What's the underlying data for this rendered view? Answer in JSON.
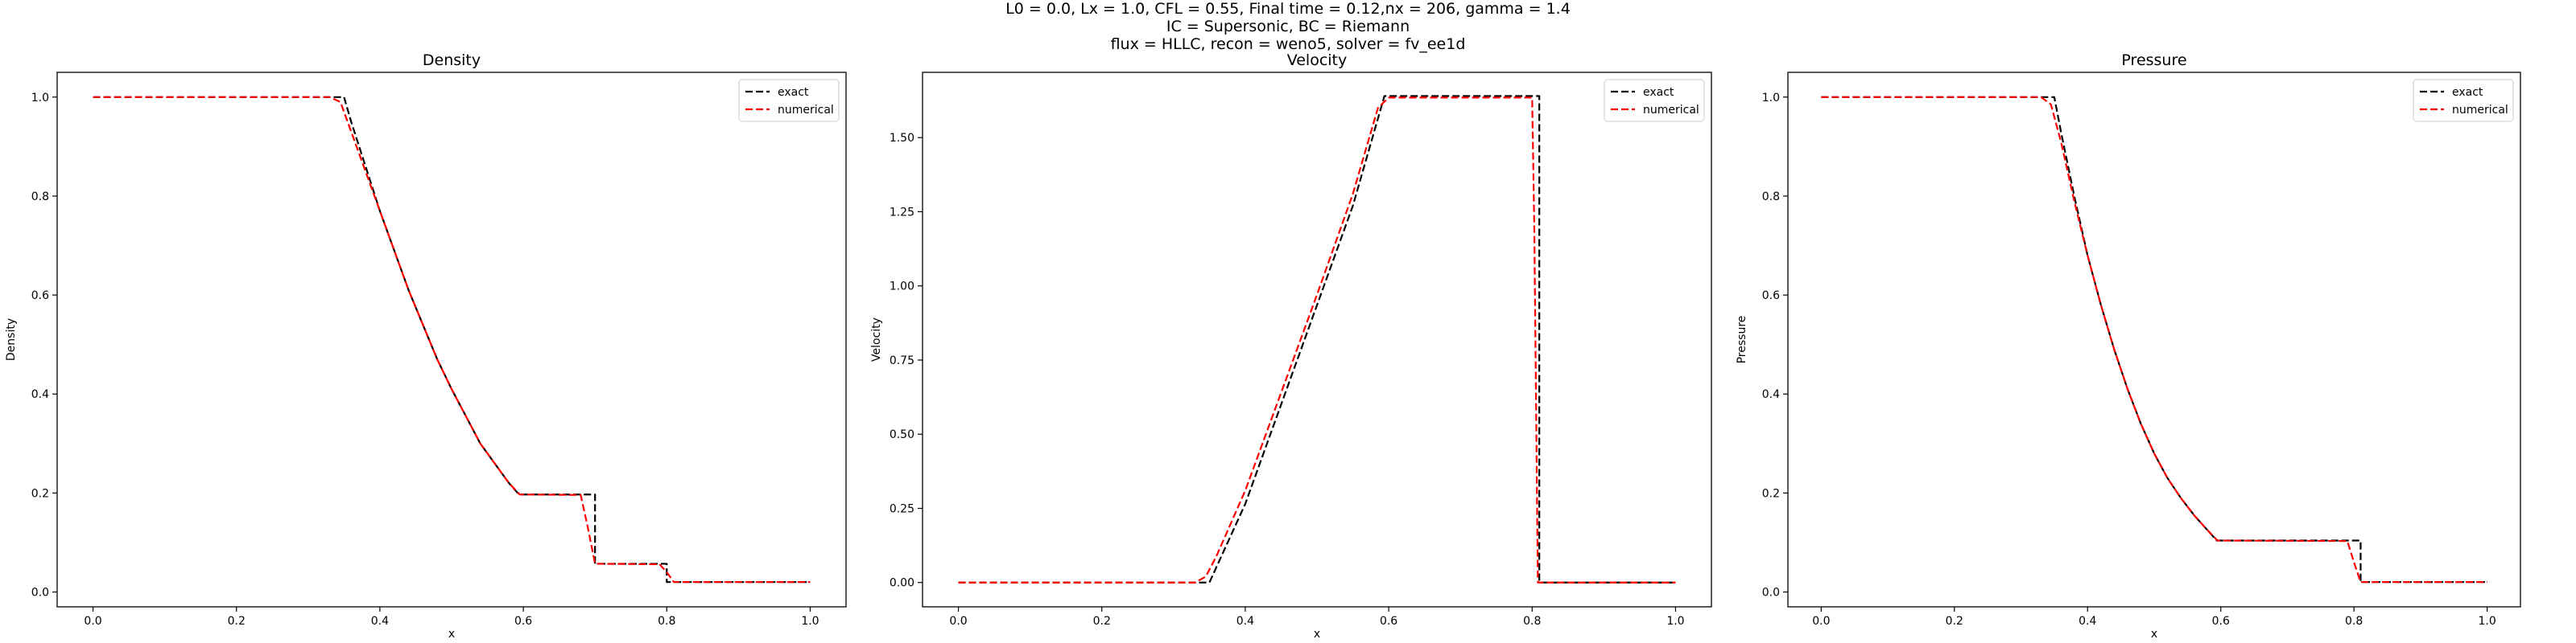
{
  "figure": {
    "title_lines": [
      "L0 = 0.0, Lx = 1.0, CFL = 0.55, Final time = 0.12,nx = 206, gamma = 1.4",
      "IC = Supersonic, BC = Riemann",
      "flux = HLLC, recon = weno5, solver = fv_ee1d"
    ]
  },
  "colors": {
    "exact": "#000000",
    "numerical": "#ff0000"
  },
  "chart_data": [
    {
      "type": "line",
      "title": "Density",
      "xlabel": "x",
      "ylabel": "Density",
      "xlim": [
        -0.05,
        1.05
      ],
      "ylim": [
        -0.03,
        1.05
      ],
      "xticks": [
        "0.0",
        "0.2",
        "0.4",
        "0.6",
        "0.8",
        "1.0"
      ],
      "yticks": [
        "0.0",
        "0.2",
        "0.4",
        "0.6",
        "0.8",
        "1.0"
      ],
      "legend": "top-right",
      "series": [
        {
          "name": "exact",
          "style": "dashed",
          "x": [
            0.0,
            0.35,
            0.36,
            0.38,
            0.4,
            0.42,
            0.44,
            0.46,
            0.48,
            0.5,
            0.52,
            0.54,
            0.56,
            0.58,
            0.594,
            0.7,
            0.7,
            0.8,
            0.8,
            1.0
          ],
          "y": [
            1.0,
            1.0,
            0.95,
            0.86,
            0.77,
            0.69,
            0.61,
            0.54,
            0.47,
            0.41,
            0.355,
            0.3,
            0.26,
            0.22,
            0.197,
            0.197,
            0.057,
            0.057,
            0.02,
            0.02
          ]
        },
        {
          "name": "numerical",
          "style": "dashed",
          "x": [
            0.0,
            0.33,
            0.345,
            0.36,
            0.38,
            0.4,
            0.42,
            0.44,
            0.46,
            0.48,
            0.5,
            0.52,
            0.54,
            0.56,
            0.58,
            0.595,
            0.68,
            0.69,
            0.7,
            0.79,
            0.8,
            0.81,
            1.0
          ],
          "y": [
            1.0,
            1.0,
            0.99,
            0.93,
            0.85,
            0.77,
            0.69,
            0.61,
            0.54,
            0.47,
            0.41,
            0.355,
            0.3,
            0.26,
            0.22,
            0.197,
            0.196,
            0.13,
            0.057,
            0.056,
            0.04,
            0.02,
            0.02
          ]
        }
      ]
    },
    {
      "type": "line",
      "title": "Velocity",
      "xlabel": "x",
      "ylabel": "Velocity",
      "xlim": [
        -0.05,
        1.05
      ],
      "ylim": [
        -0.082,
        1.72
      ],
      "xticks": [
        "0.0",
        "0.2",
        "0.4",
        "0.6",
        "0.8",
        "1.0"
      ],
      "yticks": [
        "0.00",
        "0.25",
        "0.50",
        "0.75",
        "1.00",
        "1.25",
        "1.50"
      ],
      "legend": "top-right",
      "series": [
        {
          "name": "exact",
          "style": "dashed",
          "x": [
            0.0,
            0.35,
            0.4,
            0.45,
            0.5,
            0.55,
            0.594,
            0.81,
            0.81,
            1.0
          ],
          "y": [
            0.0,
            0.0,
            0.265,
            0.6,
            0.935,
            1.27,
            1.64,
            1.64,
            0.0,
            0.0
          ]
        },
        {
          "name": "numerical",
          "style": "dashed",
          "x": [
            0.0,
            0.33,
            0.345,
            0.36,
            0.4,
            0.45,
            0.5,
            0.55,
            0.585,
            0.6,
            0.8,
            0.803,
            0.808,
            1.0
          ],
          "y": [
            0.0,
            0.0,
            0.02,
            0.09,
            0.31,
            0.64,
            0.97,
            1.31,
            1.6,
            1.635,
            1.635,
            1.2,
            0.0,
            0.0
          ]
        }
      ]
    },
    {
      "type": "line",
      "title": "Pressure",
      "xlabel": "x",
      "ylabel": "Pressure",
      "xlim": [
        -0.05,
        1.05
      ],
      "ylim": [
        -0.03,
        1.05
      ],
      "xticks": [
        "0.0",
        "0.2",
        "0.4",
        "0.6",
        "0.8",
        "1.0"
      ],
      "yticks": [
        "0.0",
        "0.2",
        "0.4",
        "0.6",
        "0.8",
        "1.0"
      ],
      "legend": "top-right",
      "series": [
        {
          "name": "exact",
          "style": "dashed",
          "x": [
            0.0,
            0.35,
            0.36,
            0.38,
            0.4,
            0.42,
            0.44,
            0.46,
            0.48,
            0.5,
            0.52,
            0.54,
            0.56,
            0.58,
            0.594,
            0.81,
            0.81,
            1.0
          ],
          "y": [
            1.0,
            1.0,
            0.93,
            0.8,
            0.68,
            0.58,
            0.49,
            0.41,
            0.34,
            0.28,
            0.23,
            0.19,
            0.155,
            0.125,
            0.104,
            0.104,
            0.02,
            0.02
          ]
        },
        {
          "name": "numerical",
          "style": "dashed",
          "x": [
            0.0,
            0.33,
            0.345,
            0.36,
            0.38,
            0.4,
            0.42,
            0.44,
            0.46,
            0.48,
            0.5,
            0.52,
            0.54,
            0.56,
            0.58,
            0.595,
            0.79,
            0.8,
            0.81,
            1.0
          ],
          "y": [
            1.0,
            1.0,
            0.985,
            0.91,
            0.79,
            0.68,
            0.58,
            0.49,
            0.41,
            0.34,
            0.28,
            0.23,
            0.19,
            0.155,
            0.125,
            0.104,
            0.103,
            0.06,
            0.02,
            0.02
          ]
        }
      ]
    }
  ]
}
